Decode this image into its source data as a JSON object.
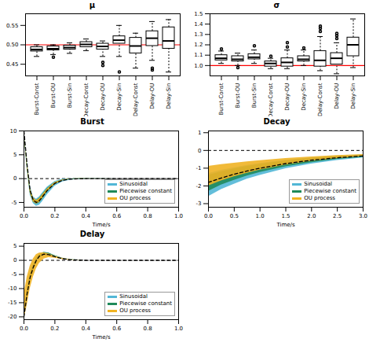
{
  "chart_data": [
    {
      "type": "box",
      "title": "μ",
      "categories": [
        "Burst-Const",
        "Burst-OU",
        "Burst-Sin",
        "Decay-Const",
        "Decay-OU",
        "Decay-Sin",
        "Delay-Const",
        "Delay-OU",
        "Delay-Sin"
      ],
      "min": [
        0.47,
        0.475,
        0.478,
        0.485,
        0.47,
        0.47,
        0.44,
        0.46,
        0.43
      ],
      "q1": [
        0.483,
        0.486,
        0.488,
        0.494,
        0.488,
        0.503,
        0.478,
        0.497,
        0.49
      ],
      "median": [
        0.488,
        0.49,
        0.493,
        0.501,
        0.496,
        0.512,
        0.497,
        0.517,
        0.51
      ],
      "q3": [
        0.494,
        0.496,
        0.498,
        0.507,
        0.503,
        0.522,
        0.518,
        0.535,
        0.545
      ],
      "max": [
        0.5,
        0.5,
        0.505,
        0.515,
        0.51,
        0.55,
        0.53,
        0.56,
        0.565
      ],
      "outliers": [
        [],
        [
          0.468
        ],
        [],
        [],
        [
          0.455,
          0.447
        ],
        [
          0.43
        ],
        [],
        [
          0.44,
          0.435
        ],
        []
      ],
      "reference": {
        "value": 0.5,
        "color": "#ff0000"
      },
      "ylim": [
        0.42,
        0.58
      ],
      "yticks": [
        0.45,
        {
          "value": 0.5,
          "label": "0.50"
        },
        0.55
      ]
    },
    {
      "type": "box",
      "title": "σ",
      "categories": [
        "Burst-Const",
        "Burst-OU",
        "Burst-Sin",
        "Decay-Const",
        "Decay-OU",
        "Decay-Sin",
        "Delay-Const",
        "Delay-OU",
        "Delay-Sin"
      ],
      "min": [
        1.02,
        1.0,
        1.02,
        0.97,
        0.97,
        1.0,
        0.95,
        0.92,
        0.98
      ],
      "q1": [
        1.05,
        1.04,
        1.06,
        0.99,
        0.99,
        1.04,
        0.99,
        1.01,
        1.09
      ],
      "median": [
        1.07,
        1.06,
        1.08,
        1.02,
        1.03,
        1.06,
        1.05,
        1.07,
        1.2
      ],
      "q3": [
        1.1,
        1.09,
        1.11,
        1.04,
        1.07,
        1.09,
        1.14,
        1.12,
        1.27
      ],
      "max": [
        1.14,
        1.12,
        1.15,
        1.07,
        1.15,
        1.15,
        1.28,
        1.22,
        1.45
      ],
      "outliers": [
        [
          1.16
        ],
        [
          0.98
        ],
        [
          1.19
        ],
        [
          1.09
        ],
        [
          1.18,
          1.22
        ],
        [
          1.17
        ],
        [
          1.33,
          1.36,
          1.38
        ],
        [
          1.26,
          1.29,
          1.31
        ],
        []
      ],
      "reference": {
        "value": 1,
        "color": "#ff0000"
      },
      "ylim": [
        0.9,
        1.5
      ],
      "yticks": [
        {
          "value": 1,
          "label": "1.0"
        },
        1.1,
        1.2,
        1.3,
        1.4,
        1.5
      ]
    },
    {
      "type": "band",
      "title": "Burst",
      "xlabel": "Time/s",
      "legend": "lower right",
      "x": [
        0,
        0.02,
        0.04,
        0.06,
        0.08,
        0.1,
        0.12,
        0.15,
        0.2,
        0.25,
        0.3,
        0.4,
        0.6,
        0.8,
        1.0
      ],
      "series": [
        {
          "name": "Sinusoidal",
          "color": "#52b7d6",
          "lower": [
            9.5,
            2,
            -3.5,
            -5.2,
            -5.8,
            -5.6,
            -4.8,
            -3.4,
            -1.6,
            -0.7,
            -0.3,
            -0.05,
            0,
            0,
            0
          ],
          "upper": [
            10,
            3.8,
            -1.5,
            -3.8,
            -4.3,
            -3.8,
            -3,
            -1.8,
            -0.6,
            -0.1,
            0,
            0.02,
            0,
            0,
            0
          ]
        },
        {
          "name": "Piecewise constant",
          "color": "#1f8a5a",
          "lower": [
            9.7,
            2.5,
            -3,
            -4.9,
            -5.4,
            -5.1,
            -4.3,
            -2.9,
            -1.2,
            -0.45,
            -0.15,
            -0.02,
            0,
            0,
            0
          ],
          "upper": [
            10,
            3.4,
            -2,
            -4.1,
            -4.6,
            -4.1,
            -3.3,
            -2.1,
            -0.8,
            -0.25,
            -0.05,
            0.01,
            0,
            0,
            0
          ]
        },
        {
          "name": "OU process",
          "color": "#f0b323",
          "lower": [
            9.6,
            2.4,
            -3,
            -4.9,
            -5.3,
            -5,
            -4.2,
            -2.8,
            -1.2,
            -0.45,
            -0.15,
            -0.02,
            0,
            0,
            0
          ],
          "upper": [
            10,
            3.5,
            -2,
            -4,
            -4.6,
            -4.2,
            -3.4,
            -2.2,
            -0.8,
            -0.25,
            -0.05,
            0.01,
            0,
            0,
            0
          ]
        }
      ],
      "mean": {
        "values": [
          10,
          3,
          -2.5,
          -4.5,
          -5,
          -4.6,
          -3.8,
          -2.5,
          -1,
          -0.35,
          -0.1,
          0,
          0,
          0,
          0
        ],
        "color": "#000000",
        "line_style": "dashed"
      },
      "reference": {
        "value": 0,
        "color": "#000000",
        "line_style": "dashed"
      },
      "xlim": [
        0,
        1
      ],
      "xticks": [
        {
          "value": 0,
          "label": "0.0"
        },
        0.2,
        0.4,
        0.6,
        0.8,
        {
          "value": 1,
          "label": "1.0"
        }
      ],
      "ylim": [
        -6,
        10
      ],
      "yticks": [
        -5,
        0,
        5,
        10
      ]
    },
    {
      "type": "band",
      "title": "Decay",
      "xlabel": "Time/s",
      "legend": "lower right",
      "x": [
        0,
        0.25,
        0.5,
        0.75,
        1,
        1.5,
        2,
        2.5,
        3
      ],
      "series": [
        {
          "name": "Sinusoidal",
          "color": "#52b7d6",
          "lower": [
            -2.6,
            -2.2,
            -1.9,
            -1.62,
            -1.4,
            -1.03,
            -0.76,
            -0.56,
            -0.42
          ],
          "upper": [
            -1.3,
            -1.12,
            -0.97,
            -0.84,
            -0.73,
            -0.55,
            -0.42,
            -0.32,
            -0.25
          ]
        },
        {
          "name": "Piecewise constant",
          "color": "#1f8a5a",
          "lower": [
            -2.3,
            -1.95,
            -1.68,
            -1.44,
            -1.24,
            -0.92,
            -0.68,
            -0.5,
            -0.38
          ],
          "upper": [
            -1.4,
            -1.2,
            -1.04,
            -0.9,
            -0.78,
            -0.58,
            -0.44,
            -0.33,
            -0.26
          ]
        },
        {
          "name": "OU process",
          "color": "#f0b323",
          "lower": [
            -2.0,
            -1.72,
            -1.48,
            -1.28,
            -1.1,
            -0.82,
            -0.61,
            -0.45,
            -0.34
          ],
          "upper": [
            -0.9,
            -0.8,
            -0.72,
            -0.64,
            -0.57,
            -0.45,
            -0.36,
            -0.29,
            -0.23
          ]
        }
      ],
      "mean": {
        "values": [
          -1.8,
          -1.55,
          -1.34,
          -1.16,
          -1,
          -0.74,
          -0.55,
          -0.41,
          -0.31
        ],
        "color": "#000000",
        "line_style": "dashed"
      },
      "reference": {
        "value": 0,
        "color": "#000000",
        "line_style": "dashed"
      },
      "xlim": [
        0,
        3
      ],
      "xticks": [
        {
          "value": 0,
          "label": "0.0"
        },
        0.5,
        {
          "value": 1,
          "label": "1.0"
        },
        1.5,
        {
          "value": 2,
          "label": "2.0"
        },
        2.5,
        {
          "value": 3,
          "label": "3.0"
        }
      ],
      "ylim": [
        -3.2,
        1.1
      ],
      "yticks": [
        -3,
        -2,
        -1,
        0,
        1
      ]
    },
    {
      "type": "band",
      "title": "Delay",
      "xlabel": "Time/s",
      "legend": "lower right",
      "x": [
        0,
        0.02,
        0.04,
        0.06,
        0.08,
        0.1,
        0.13,
        0.16,
        0.2,
        0.25,
        0.3,
        0.4,
        0.6,
        0.8,
        1.0
      ],
      "series": [
        {
          "name": "Sinusoidal",
          "color": "#52b7d6",
          "lower": [
            -21,
            -14,
            -8,
            -4,
            -1.2,
            0.6,
            1.6,
            1.8,
            1.2,
            0.5,
            0.15,
            0,
            0,
            0,
            0
          ],
          "upper": [
            -19,
            -10,
            -4.5,
            -1,
            1,
            2.2,
            2.9,
            2.6,
            1.6,
            0.7,
            0.25,
            0.02,
            0,
            0,
            0
          ]
        },
        {
          "name": "Piecewise constant",
          "color": "#1f8a5a",
          "lower": [
            -20.5,
            -13,
            -7,
            -3.2,
            -0.6,
            1,
            2,
            2.2,
            1.5,
            0.7,
            0.25,
            0.02,
            0,
            0,
            0
          ],
          "upper": [
            -19.5,
            -11,
            -5,
            -1.8,
            0.6,
            2,
            2.8,
            2.6,
            1.7,
            0.8,
            0.3,
            0.03,
            0,
            0,
            0
          ]
        },
        {
          "name": "OU process",
          "color": "#f0b323",
          "lower": [
            -21,
            -16,
            -10,
            -6,
            -3,
            -1,
            0.5,
            1,
            0.8,
            0.3,
            0.1,
            0,
            0,
            0,
            0
          ],
          "upper": [
            -12,
            -6,
            -2,
            0.5,
            2,
            2.6,
            2.7,
            2.3,
            1.5,
            0.7,
            0.25,
            0.02,
            0,
            0,
            0
          ]
        }
      ],
      "mean": {
        "values": [
          -20,
          -12,
          -6,
          -2.5,
          0,
          1.5,
          2.2,
          2,
          1.3,
          0.6,
          0.2,
          0,
          0,
          0,
          0
        ],
        "color": "#000000",
        "line_style": "dashed"
      },
      "reference": {
        "value": 0,
        "color": "#000000",
        "line_style": "dashed"
      },
      "xlim": [
        0,
        1
      ],
      "xticks": [
        {
          "value": 0,
          "label": "0.0"
        },
        0.2,
        0.4,
        0.6,
        0.8,
        {
          "value": 1,
          "label": "1.0"
        }
      ],
      "ylim": [
        -21,
        6
      ],
      "yticks": [
        -20,
        -15,
        -10,
        -5,
        0,
        5
      ]
    }
  ]
}
